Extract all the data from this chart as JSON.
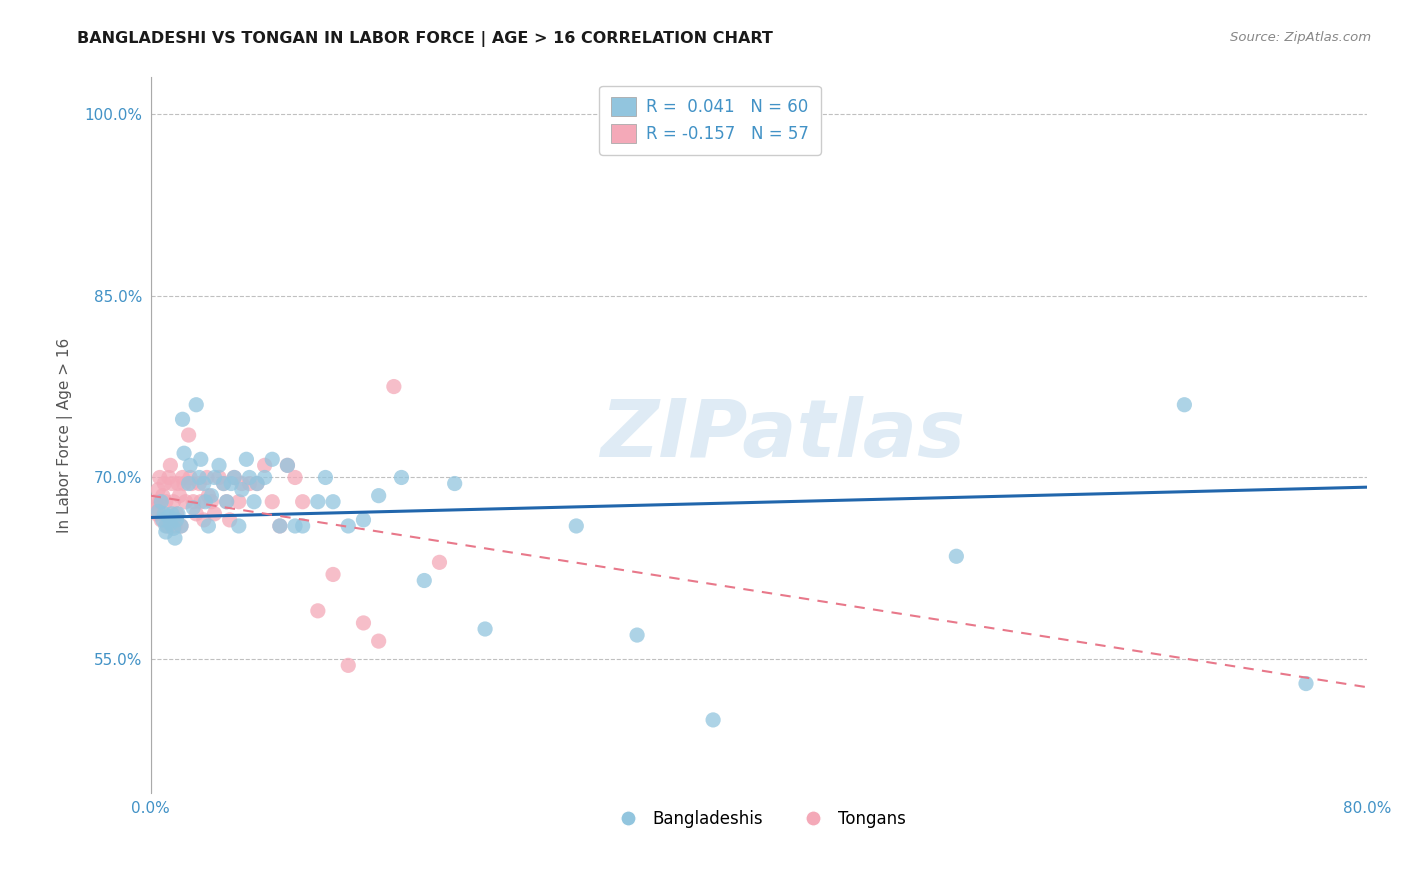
{
  "title": "BANGLADESHI VS TONGAN IN LABOR FORCE | AGE > 16 CORRELATION CHART",
  "source": "Source: ZipAtlas.com",
  "ylabel": "In Labor Force | Age > 16",
  "xlim": [
    0.0,
    0.8
  ],
  "ylim": [
    0.44,
    1.03
  ],
  "x_ticks": [
    0.0,
    0.1,
    0.2,
    0.3,
    0.4,
    0.5,
    0.6,
    0.7,
    0.8
  ],
  "y_ticks": [
    0.55,
    0.7,
    0.85,
    1.0
  ],
  "y_tick_labels": [
    "55.0%",
    "70.0%",
    "85.0%",
    "100.0%"
  ],
  "watermark": "ZIPatlas",
  "legend_r1": "R =  0.041   N = 60",
  "legend_r2": "R = -0.157   N = 57",
  "blue_color": "#92c5de",
  "pink_color": "#f4a9b8",
  "trendline_blue": "#2166ac",
  "trendline_pink": "#e8788a",
  "grid_color": "#c0c0c0",
  "blue_scatter_x": [
    0.005,
    0.007,
    0.008,
    0.009,
    0.01,
    0.01,
    0.012,
    0.013,
    0.014,
    0.015,
    0.016,
    0.017,
    0.018,
    0.02,
    0.021,
    0.022,
    0.025,
    0.026,
    0.028,
    0.03,
    0.032,
    0.033,
    0.035,
    0.036,
    0.038,
    0.04,
    0.042,
    0.045,
    0.048,
    0.05,
    0.053,
    0.055,
    0.058,
    0.06,
    0.063,
    0.065,
    0.068,
    0.07,
    0.075,
    0.08,
    0.085,
    0.09,
    0.095,
    0.1,
    0.11,
    0.115,
    0.12,
    0.13,
    0.14,
    0.15,
    0.165,
    0.18,
    0.2,
    0.22,
    0.28,
    0.32,
    0.37,
    0.53,
    0.68,
    0.76
  ],
  "blue_scatter_y": [
    0.672,
    0.68,
    0.665,
    0.67,
    0.66,
    0.655,
    0.668,
    0.662,
    0.67,
    0.658,
    0.65,
    0.665,
    0.67,
    0.66,
    0.748,
    0.72,
    0.695,
    0.71,
    0.675,
    0.76,
    0.7,
    0.715,
    0.695,
    0.68,
    0.66,
    0.685,
    0.7,
    0.71,
    0.695,
    0.68,
    0.695,
    0.7,
    0.66,
    0.69,
    0.715,
    0.7,
    0.68,
    0.695,
    0.7,
    0.715,
    0.66,
    0.71,
    0.66,
    0.66,
    0.68,
    0.7,
    0.68,
    0.66,
    0.665,
    0.685,
    0.7,
    0.615,
    0.695,
    0.575,
    0.66,
    0.57,
    0.5,
    0.635,
    0.76,
    0.53
  ],
  "pink_scatter_x": [
    0.003,
    0.004,
    0.005,
    0.005,
    0.006,
    0.006,
    0.007,
    0.008,
    0.009,
    0.01,
    0.011,
    0.012,
    0.013,
    0.014,
    0.015,
    0.016,
    0.017,
    0.018,
    0.019,
    0.02,
    0.021,
    0.022,
    0.023,
    0.025,
    0.026,
    0.027,
    0.028,
    0.03,
    0.032,
    0.033,
    0.035,
    0.037,
    0.038,
    0.04,
    0.042,
    0.045,
    0.048,
    0.05,
    0.052,
    0.055,
    0.058,
    0.06,
    0.065,
    0.07,
    0.075,
    0.08,
    0.085,
    0.09,
    0.095,
    0.1,
    0.11,
    0.12,
    0.13,
    0.14,
    0.15,
    0.16,
    0.19
  ],
  "pink_scatter_y": [
    0.68,
    0.67,
    0.69,
    0.675,
    0.7,
    0.68,
    0.665,
    0.685,
    0.695,
    0.68,
    0.66,
    0.7,
    0.71,
    0.695,
    0.68,
    0.66,
    0.67,
    0.695,
    0.685,
    0.66,
    0.7,
    0.695,
    0.68,
    0.735,
    0.7,
    0.695,
    0.68,
    0.67,
    0.695,
    0.68,
    0.665,
    0.7,
    0.685,
    0.68,
    0.67,
    0.7,
    0.695,
    0.68,
    0.665,
    0.7,
    0.68,
    0.695,
    0.695,
    0.695,
    0.71,
    0.68,
    0.66,
    0.71,
    0.7,
    0.68,
    0.59,
    0.62,
    0.545,
    0.58,
    0.565,
    0.775,
    0.63
  ],
  "blue_trend_x": [
    0.0,
    0.8
  ],
  "blue_trend_y": [
    0.667,
    0.692
  ],
  "pink_trend_x": [
    0.0,
    0.8
  ],
  "pink_trend_y": [
    0.685,
    0.527
  ]
}
